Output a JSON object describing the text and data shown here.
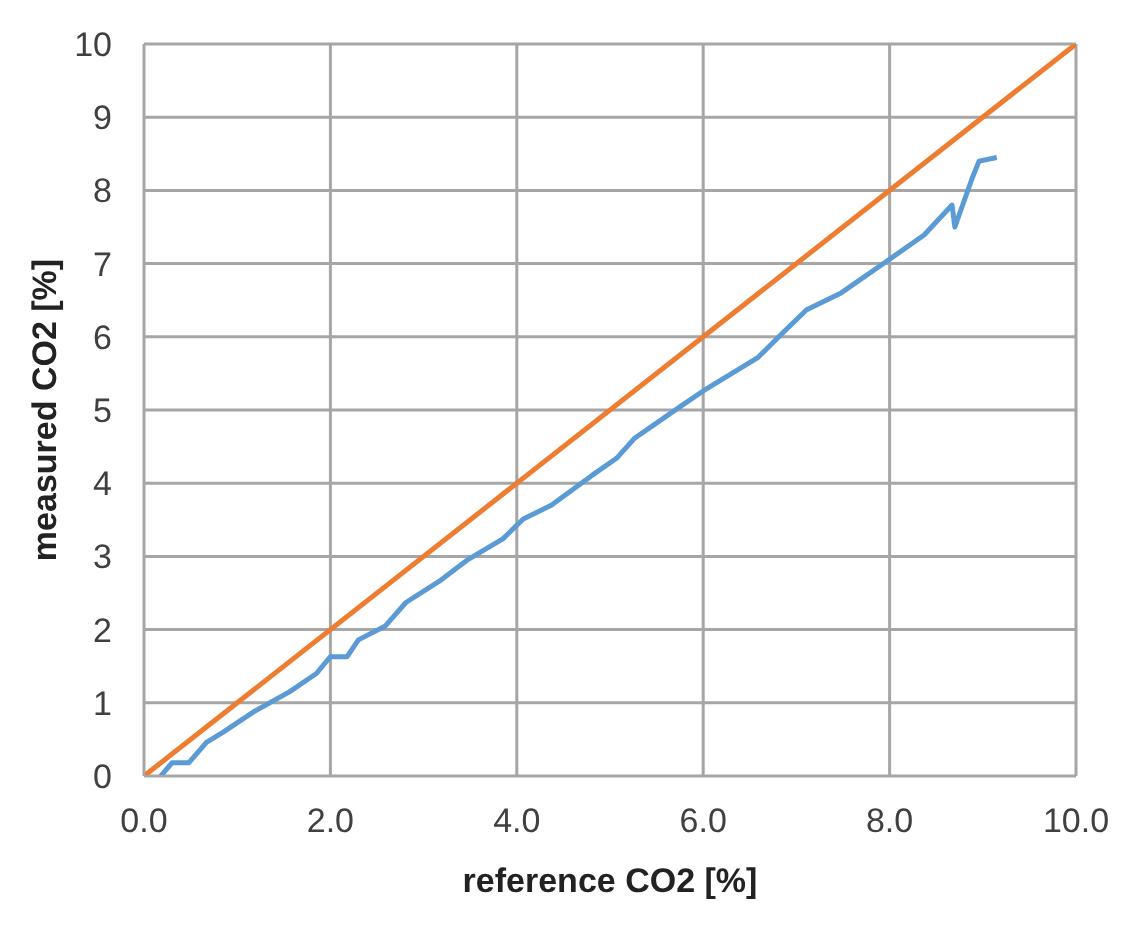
{
  "chart_data": {
    "type": "line",
    "xlabel": "reference CO2 [%]",
    "ylabel": "measured CO2 [%]",
    "xlim": [
      0,
      10
    ],
    "ylim": [
      0,
      10
    ],
    "xticks": [
      {
        "value": 0,
        "label": "0.0"
      },
      {
        "value": 2,
        "label": "2.0"
      },
      {
        "value": 4,
        "label": "4.0"
      },
      {
        "value": 6,
        "label": "6.0"
      },
      {
        "value": 8,
        "label": "8.0"
      },
      {
        "value": 10,
        "label": "10.0"
      }
    ],
    "yticks": [
      0,
      1,
      2,
      3,
      4,
      5,
      6,
      7,
      8,
      9,
      10
    ],
    "grid": true,
    "marker": "none",
    "line_style": "solid",
    "series": [
      {
        "color": "#5b9bd5",
        "x": [
          0.18,
          0.3,
          0.48,
          0.67,
          0.85,
          1.18,
          1.56,
          1.85,
          2.0,
          2.18,
          2.3,
          2.59,
          2.81,
          3.19,
          3.48,
          3.85,
          4.07,
          4.37,
          4.81,
          5.07,
          5.26,
          5.78,
          6.0,
          6.59,
          6.89,
          7.11,
          7.48,
          8.0,
          8.37,
          8.67,
          8.7,
          8.89,
          8.96,
          9.15
        ],
        "values": [
          0,
          0.18,
          0.18,
          0.46,
          0.6,
          0.88,
          1.15,
          1.4,
          1.63,
          1.63,
          1.86,
          2.05,
          2.37,
          2.68,
          2.96,
          3.24,
          3.51,
          3.7,
          4.11,
          4.34,
          4.61,
          5.07,
          5.26,
          5.72,
          6.1,
          6.37,
          6.6,
          7.06,
          7.39,
          7.8,
          7.5,
          8.18,
          8.4,
          8.45
        ]
      },
      {
        "color": "#ed7d31",
        "x": [
          0,
          10
        ],
        "values": [
          0,
          10
        ]
      }
    ]
  }
}
